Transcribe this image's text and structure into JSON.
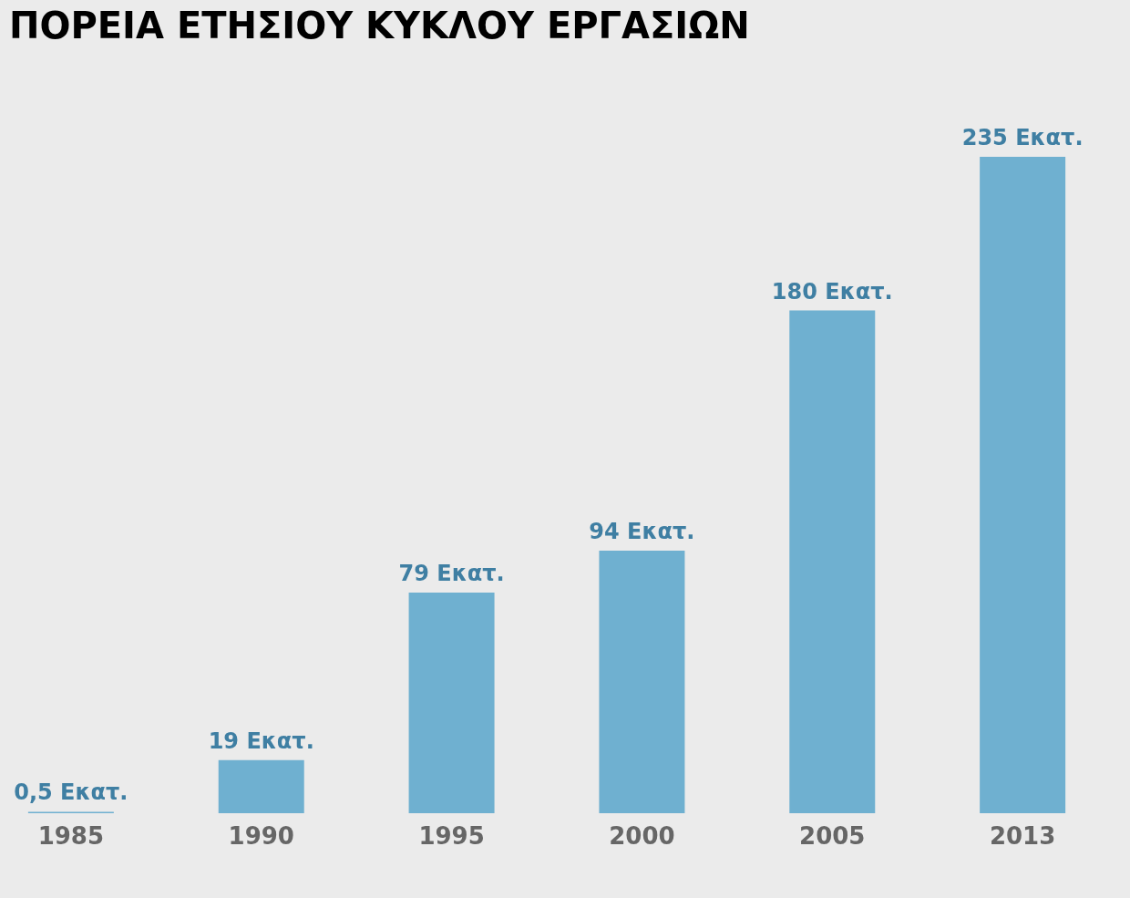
{
  "chart_data": {
    "type": "bar",
    "title": "ΠΟΡΕΙΑ ΕΤΗΣΙΟΥ ΚΥΚΛΟΥ ΕΡΓΑΣΙΩΝ",
    "categories": [
      "1985",
      "1990",
      "1995",
      "2000",
      "2005",
      "2013"
    ],
    "values": [
      0.5,
      19,
      79,
      94,
      180,
      235
    ],
    "value_labels": [
      "0,5 Εκατ.",
      "19 Εκατ.",
      "79 Εκατ.",
      "94 Εκατ.",
      "180 Εκατ.",
      "235 Εκατ."
    ],
    "color": "#6fb0d0"
  }
}
